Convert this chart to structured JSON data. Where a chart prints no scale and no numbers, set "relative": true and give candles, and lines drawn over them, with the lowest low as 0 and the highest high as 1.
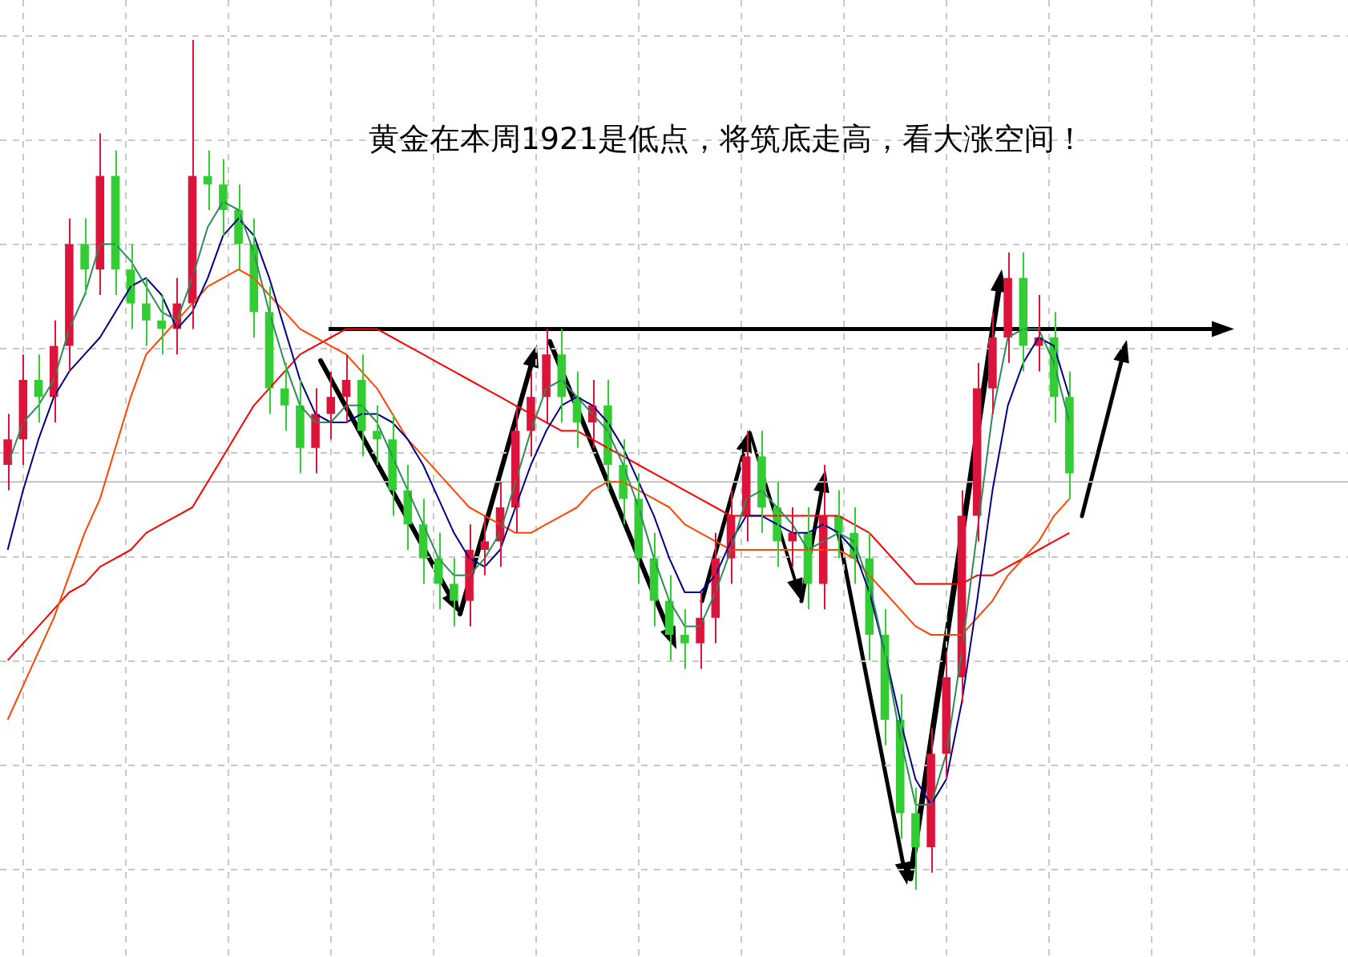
{
  "chart_data": {
    "type": "candlestick",
    "relative": true,
    "grid": true,
    "annotations": [
      "黄金在本周1921是低点，将筑底走高，看大涨空间！"
    ],
    "categories": [
      null,
      null,
      null,
      null,
      null,
      null,
      null,
      null,
      null,
      null,
      null,
      null,
      null,
      null,
      null,
      null,
      null,
      null,
      null,
      null,
      null,
      null,
      null,
      null,
      null,
      null,
      null,
      null,
      null,
      null,
      null,
      null,
      null,
      null,
      null,
      null,
      null,
      null,
      null,
      null,
      null,
      null,
      null,
      null,
      null,
      null,
      null,
      null,
      null,
      null,
      null,
      null,
      null,
      null,
      null,
      null,
      null,
      null,
      null,
      null,
      null,
      null,
      null,
      null,
      null,
      null,
      null,
      null,
      null,
      null
    ],
    "ohlc": [
      [
        0.5,
        0.56,
        0.47,
        0.53
      ],
      [
        0.53,
        0.63,
        0.5,
        0.6
      ],
      [
        0.6,
        0.63,
        0.55,
        0.58
      ],
      [
        0.58,
        0.67,
        0.55,
        0.64
      ],
      [
        0.64,
        0.79,
        0.61,
        0.76
      ],
      [
        0.76,
        0.79,
        0.7,
        0.73
      ],
      [
        0.73,
        0.89,
        0.7,
        0.84
      ],
      [
        0.84,
        0.87,
        0.7,
        0.73
      ],
      [
        0.73,
        0.76,
        0.66,
        0.69
      ],
      [
        0.69,
        0.72,
        0.64,
        0.67
      ],
      [
        0.67,
        0.7,
        0.63,
        0.66
      ],
      [
        0.66,
        0.72,
        0.63,
        0.69
      ],
      [
        0.69,
        1.0,
        0.66,
        0.84
      ],
      [
        0.84,
        0.87,
        0.8,
        0.83
      ],
      [
        0.83,
        0.86,
        0.77,
        0.8
      ],
      [
        0.8,
        0.83,
        0.73,
        0.76
      ],
      [
        0.76,
        0.79,
        0.65,
        0.68
      ],
      [
        0.68,
        0.71,
        0.56,
        0.59
      ],
      [
        0.59,
        0.62,
        0.54,
        0.57
      ],
      [
        0.57,
        0.6,
        0.49,
        0.52
      ],
      [
        0.52,
        0.59,
        0.49,
        0.56
      ],
      [
        0.56,
        0.61,
        0.53,
        0.58
      ],
      [
        0.58,
        0.63,
        0.55,
        0.6
      ],
      [
        0.6,
        0.63,
        0.51,
        0.54
      ],
      [
        0.54,
        0.57,
        0.5,
        0.53
      ],
      [
        0.53,
        0.56,
        0.44,
        0.47
      ],
      [
        0.47,
        0.5,
        0.4,
        0.43
      ],
      [
        0.43,
        0.46,
        0.36,
        0.39
      ],
      [
        0.39,
        0.42,
        0.33,
        0.36
      ],
      [
        0.36,
        0.39,
        0.31,
        0.34
      ],
      [
        0.34,
        0.43,
        0.31,
        0.4
      ],
      [
        0.4,
        0.44,
        0.37,
        0.41
      ],
      [
        0.41,
        0.48,
        0.38,
        0.45
      ],
      [
        0.45,
        0.57,
        0.42,
        0.54
      ],
      [
        0.54,
        0.61,
        0.51,
        0.58
      ],
      [
        0.58,
        0.66,
        0.55,
        0.63
      ],
      [
        0.63,
        0.66,
        0.55,
        0.58
      ],
      [
        0.58,
        0.61,
        0.52,
        0.55
      ],
      [
        0.55,
        0.6,
        0.52,
        0.57
      ],
      [
        0.57,
        0.6,
        0.47,
        0.5
      ],
      [
        0.5,
        0.53,
        0.43,
        0.46
      ],
      [
        0.46,
        0.49,
        0.36,
        0.39
      ],
      [
        0.39,
        0.42,
        0.31,
        0.34
      ],
      [
        0.34,
        0.37,
        0.27,
        0.3
      ],
      [
        0.3,
        0.33,
        0.26,
        0.29
      ],
      [
        0.29,
        0.35,
        0.26,
        0.32
      ],
      [
        0.32,
        0.42,
        0.29,
        0.39
      ],
      [
        0.39,
        0.47,
        0.36,
        0.44
      ],
      [
        0.44,
        0.54,
        0.41,
        0.51
      ],
      [
        0.51,
        0.54,
        0.42,
        0.45
      ],
      [
        0.45,
        0.48,
        0.38,
        0.41
      ],
      [
        0.41,
        0.45,
        0.38,
        0.42
      ],
      [
        0.42,
        0.45,
        0.33,
        0.36
      ],
      [
        0.36,
        0.5,
        0.33,
        0.44
      ],
      [
        0.44,
        0.47,
        0.39,
        0.42
      ],
      [
        0.42,
        0.45,
        0.36,
        0.39
      ],
      [
        0.39,
        0.42,
        0.27,
        0.3
      ],
      [
        0.3,
        0.33,
        0.17,
        0.2
      ],
      [
        0.2,
        0.23,
        0.06,
        0.09
      ],
      [
        0.09,
        0.12,
        0.0,
        0.05
      ],
      [
        0.05,
        0.19,
        0.02,
        0.16
      ],
      [
        0.16,
        0.28,
        0.13,
        0.25
      ],
      [
        0.25,
        0.47,
        0.22,
        0.44
      ],
      [
        0.44,
        0.62,
        0.41,
        0.59
      ],
      [
        0.59,
        0.68,
        0.56,
        0.65
      ],
      [
        0.65,
        0.75,
        0.62,
        0.72
      ],
      [
        0.72,
        0.75,
        0.61,
        0.64
      ],
      [
        0.64,
        0.7,
        0.61,
        0.65
      ],
      [
        0.65,
        0.68,
        0.55,
        0.58
      ],
      [
        0.58,
        0.61,
        0.46,
        0.49
      ]
    ],
    "colors": [
      "#dc143c",
      "#dc143c",
      "#32cd32",
      "#dc143c",
      "#dc143c",
      "#32cd32",
      "#dc143c",
      "#32cd32",
      "#32cd32",
      "#32cd32",
      "#32cd32",
      "#dc143c",
      "#dc143c",
      "#32cd32",
      "#32cd32",
      "#32cd32",
      "#32cd32",
      "#32cd32",
      "#32cd32",
      "#32cd32",
      "#dc143c",
      "#dc143c",
      "#dc143c",
      "#32cd32",
      "#32cd32",
      "#32cd32",
      "#32cd32",
      "#32cd32",
      "#32cd32",
      "#32cd32",
      "#dc143c",
      "#dc143c",
      "#dc143c",
      "#dc143c",
      "#dc143c",
      "#dc143c",
      "#32cd32",
      "#32cd32",
      "#dc143c",
      "#32cd32",
      "#32cd32",
      "#32cd32",
      "#32cd32",
      "#32cd32",
      "#32cd32",
      "#dc143c",
      "#dc143c",
      "#dc143c",
      "#dc143c",
      "#32cd32",
      "#32cd32",
      "#dc143c",
      "#32cd32",
      "#dc143c",
      "#32cd32",
      "#32cd32",
      "#32cd32",
      "#32cd32",
      "#32cd32",
      "#32cd32",
      "#dc143c",
      "#dc143c",
      "#dc143c",
      "#dc143c",
      "#dc143c",
      "#dc143c",
      "#32cd32",
      "#dc143c",
      "#32cd32",
      "#32cd32"
    ],
    "series": [
      {
        "type": "line",
        "color": "#2e8b57",
        "values": [
          0.5,
          0.55,
          0.57,
          0.6,
          0.66,
          0.7,
          0.76,
          0.76,
          0.74,
          0.71,
          0.68,
          0.67,
          0.72,
          0.78,
          0.81,
          0.8,
          0.75,
          0.68,
          0.62,
          0.57,
          0.55,
          0.55,
          0.57,
          0.57,
          0.55,
          0.51,
          0.47,
          0.43,
          0.39,
          0.37,
          0.37,
          0.39,
          0.42,
          0.48,
          0.54,
          0.59,
          0.6,
          0.58,
          0.56,
          0.54,
          0.5,
          0.45,
          0.39,
          0.34,
          0.31,
          0.31,
          0.35,
          0.4,
          0.46,
          0.47,
          0.45,
          0.43,
          0.4,
          0.41,
          0.42,
          0.41,
          0.36,
          0.28,
          0.18,
          0.1,
          0.1,
          0.16,
          0.28,
          0.42,
          0.56,
          0.65,
          0.66,
          0.66,
          0.62,
          0.55
        ]
      },
      {
        "type": "line",
        "color": "#00008b",
        "values": [
          0.4,
          0.47,
          0.53,
          0.58,
          0.61,
          0.63,
          0.65,
          0.68,
          0.71,
          0.72,
          0.7,
          0.66,
          0.68,
          0.72,
          0.77,
          0.79,
          0.77,
          0.72,
          0.66,
          0.6,
          0.56,
          0.55,
          0.55,
          0.56,
          0.56,
          0.55,
          0.53,
          0.5,
          0.46,
          0.42,
          0.39,
          0.38,
          0.4,
          0.45,
          0.5,
          0.54,
          0.57,
          0.58,
          0.57,
          0.55,
          0.52,
          0.48,
          0.44,
          0.39,
          0.35,
          0.35,
          0.37,
          0.41,
          0.44,
          0.44,
          0.43,
          0.42,
          0.42,
          0.43,
          0.42,
          0.4,
          0.35,
          0.28,
          0.2,
          0.13,
          0.1,
          0.13,
          0.22,
          0.34,
          0.47,
          0.57,
          0.62,
          0.65,
          0.64,
          0.58
        ]
      },
      {
        "type": "line",
        "color": "#ff4500",
        "values": [
          0.2,
          0.24,
          0.28,
          0.32,
          0.37,
          0.42,
          0.46,
          0.52,
          0.58,
          0.63,
          0.65,
          0.67,
          0.69,
          0.71,
          0.72,
          0.73,
          0.72,
          0.7,
          0.68,
          0.66,
          0.65,
          0.64,
          0.63,
          0.61,
          0.59,
          0.56,
          0.53,
          0.51,
          0.49,
          0.47,
          0.45,
          0.44,
          0.43,
          0.42,
          0.42,
          0.43,
          0.44,
          0.45,
          0.47,
          0.48,
          0.48,
          0.47,
          0.46,
          0.45,
          0.43,
          0.42,
          0.41,
          0.4,
          0.4,
          0.4,
          0.4,
          0.4,
          0.4,
          0.4,
          0.4,
          0.39,
          0.37,
          0.35,
          0.33,
          0.31,
          0.3,
          0.3,
          0.3,
          0.32,
          0.34,
          0.37,
          0.39,
          0.41,
          0.44,
          0.46
        ]
      },
      {
        "type": "line",
        "color": "#ff0000",
        "values": [
          0.27,
          0.29,
          0.31,
          0.33,
          0.35,
          0.36,
          0.38,
          0.39,
          0.4,
          0.42,
          0.43,
          0.44,
          0.45,
          0.48,
          0.51,
          0.54,
          0.57,
          0.59,
          0.61,
          0.63,
          0.64,
          0.65,
          0.66,
          0.66,
          0.66,
          0.65,
          0.64,
          0.63,
          0.62,
          0.61,
          0.6,
          0.59,
          0.58,
          0.57,
          0.56,
          0.55,
          0.54,
          0.54,
          0.53,
          0.52,
          0.51,
          0.5,
          0.49,
          0.48,
          0.47,
          0.46,
          0.45,
          0.44,
          0.44,
          0.44,
          0.44,
          0.44,
          0.44,
          0.44,
          0.44,
          0.43,
          0.42,
          0.4,
          0.38,
          0.36,
          0.36,
          0.36,
          0.36,
          0.37,
          0.37,
          0.38,
          0.39,
          0.4,
          0.41,
          0.42
        ]
      }
    ],
    "ref_lines": [
      {
        "axis": "y",
        "value": 0.48,
        "color": "#c0c0c0"
      },
      {
        "axis": "y",
        "value": 0.66,
        "color": "#000000"
      }
    ]
  }
}
